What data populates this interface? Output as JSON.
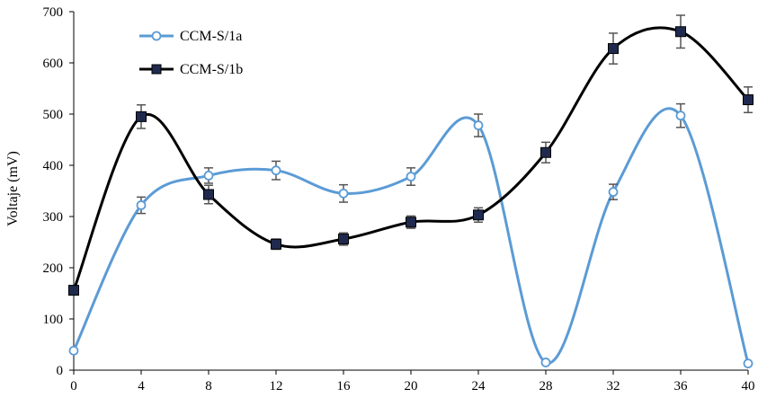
{
  "chart_data": {
    "type": "line",
    "title": "",
    "xlabel": "",
    "ylabel": "Voltaje (mV)",
    "xlim": [
      0,
      40
    ],
    "ylim": [
      0,
      700
    ],
    "x_ticks": [
      0,
      4,
      8,
      12,
      16,
      20,
      24,
      28,
      32,
      36,
      40
    ],
    "y_ticks": [
      0,
      100,
      200,
      300,
      400,
      500,
      600,
      700
    ],
    "grid": false,
    "legend_position": "top-left",
    "series": [
      {
        "name": "CCM-S/1a",
        "color": "#5B9BD5",
        "marker": "open-circle",
        "x": [
          0,
          4,
          8,
          12,
          16,
          20,
          24,
          28,
          32,
          36,
          40
        ],
        "y": [
          38,
          322,
          380,
          390,
          345,
          378,
          478,
          15,
          348,
          497,
          13
        ],
        "error": [
          0,
          16,
          15,
          18,
          17,
          17,
          22,
          0,
          15,
          23,
          0
        ]
      },
      {
        "name": "CCM-S/1b",
        "color": "#000000",
        "marker_fill": "#1F2A4E",
        "marker": "filled-square",
        "x": [
          0,
          4,
          8,
          12,
          16,
          20,
          24,
          28,
          32,
          36,
          40
        ],
        "y": [
          156,
          495,
          343,
          246,
          256,
          289,
          303,
          425,
          628,
          661,
          528
        ],
        "error": [
          0,
          23,
          18,
          10,
          12,
          12,
          14,
          20,
          30,
          32,
          25
        ]
      }
    ]
  }
}
